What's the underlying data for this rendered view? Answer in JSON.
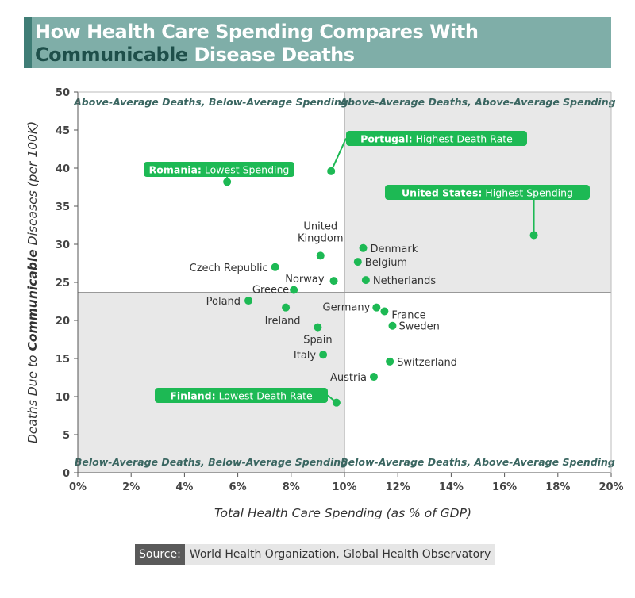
{
  "title": {
    "line1": "How Health Care Spending Compares With",
    "line2_highlight": "Communicable",
    "line2_rest": " Disease Deaths"
  },
  "source": {
    "label": "Source:",
    "text": "World Health Organization, Global Health Observatory"
  },
  "colors": {
    "point": "#1db954",
    "callout": "#1db954",
    "quadrant_shade": "#e8e8e8",
    "quadrant_text": "#3a6661",
    "title_bg": "#7faea8"
  },
  "chart_data": {
    "type": "scatter",
    "title": "How Health Care Spending Compares With Communicable Disease Deaths",
    "xlabel": "Total Health Care Spending (as % of GDP)",
    "ylabel_parts": [
      "Deaths Due to ",
      "Communicable",
      " Diseases (per 100K)"
    ],
    "xlim": [
      0,
      20
    ],
    "ylim": [
      0,
      50
    ],
    "x_ticks": [
      0,
      2,
      4,
      6,
      8,
      10,
      12,
      14,
      16,
      18,
      20
    ],
    "x_tick_labels": [
      "0%",
      "2%",
      "4%",
      "6%",
      "8%",
      "10%",
      "12%",
      "14%",
      "16%",
      "18%",
      "20%"
    ],
    "y_ticks": [
      0,
      5,
      10,
      15,
      20,
      25,
      30,
      35,
      40,
      45,
      50
    ],
    "y_tick_labels": [
      "0",
      "5",
      "10",
      "15",
      "20",
      "25",
      "30",
      "35",
      "40",
      "45",
      "50"
    ],
    "avg_x": 10,
    "avg_y": 23.7,
    "quadrants": {
      "top_left": "Above-Average Deaths, Below-Average Spending",
      "top_right": "Above-Average Deaths, Above-Average Spending",
      "bottom_left": "Below-Average Deaths, Below-Average Spending",
      "bottom_right": "Below-Average Deaths, Above-Average Spending"
    },
    "points": [
      {
        "name": "Romania",
        "x": 5.6,
        "y": 38.2,
        "label": ""
      },
      {
        "name": "Portugal",
        "x": 9.5,
        "y": 39.6,
        "label": ""
      },
      {
        "name": "United States",
        "x": 17.1,
        "y": 31.2,
        "label": ""
      },
      {
        "name": "United Kingdom",
        "x": 9.1,
        "y": 28.5,
        "label": "United\nKingdom"
      },
      {
        "name": "Denmark",
        "x": 10.7,
        "y": 29.5,
        "label": "Denmark"
      },
      {
        "name": "Belgium",
        "x": 10.5,
        "y": 27.7,
        "label": "Belgium"
      },
      {
        "name": "Czech Republic",
        "x": 7.4,
        "y": 27.0,
        "label": "Czech Republic"
      },
      {
        "name": "Norway",
        "x": 9.6,
        "y": 25.2,
        "label": "Norway"
      },
      {
        "name": "Netherlands",
        "x": 10.8,
        "y": 25.3,
        "label": "Netherlands"
      },
      {
        "name": "Greece",
        "x": 8.1,
        "y": 24.0,
        "label": "Greece"
      },
      {
        "name": "Poland",
        "x": 6.4,
        "y": 22.6,
        "label": "Poland"
      },
      {
        "name": "Ireland",
        "x": 7.8,
        "y": 21.7,
        "label": "Ireland"
      },
      {
        "name": "Germany",
        "x": 11.2,
        "y": 21.7,
        "label": "Germany"
      },
      {
        "name": "France",
        "x": 11.5,
        "y": 21.2,
        "label": "France"
      },
      {
        "name": "Sweden",
        "x": 11.8,
        "y": 19.3,
        "label": "Sweden"
      },
      {
        "name": "Spain",
        "x": 9.0,
        "y": 19.1,
        "label": "Spain"
      },
      {
        "name": "Italy",
        "x": 9.2,
        "y": 15.5,
        "label": "Italy"
      },
      {
        "name": "Switzerland",
        "x": 11.7,
        "y": 14.6,
        "label": "Switzerland"
      },
      {
        "name": "Austria",
        "x": 11.1,
        "y": 12.6,
        "label": "Austria"
      },
      {
        "name": "Finland",
        "x": 9.7,
        "y": 9.2,
        "label": ""
      }
    ],
    "callouts": [
      {
        "point": "Romania",
        "bold": "Romania:",
        "text": " Lowest Spending"
      },
      {
        "point": "Portugal",
        "bold": "Portugal:",
        "text": " Highest Death Rate"
      },
      {
        "point": "United States",
        "bold": "United States:",
        "text": " Highest Spending"
      },
      {
        "point": "Finland",
        "bold": "Finland:",
        "text": " Lowest Death Rate"
      }
    ]
  }
}
